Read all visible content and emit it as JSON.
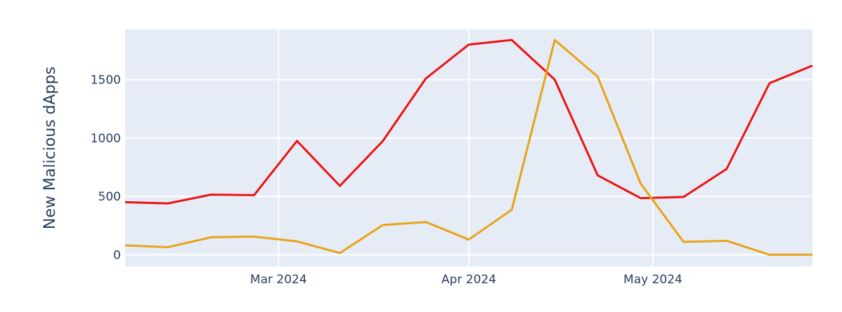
{
  "chart_data": {
    "type": "line",
    "title": "",
    "xlabel": "",
    "ylabel": "New Malicious dApps",
    "x": [
      "2024-02-05",
      "2024-02-12",
      "2024-02-19",
      "2024-02-26",
      "2024-03-04",
      "2024-03-11",
      "2024-03-18",
      "2024-03-25",
      "2024-04-01",
      "2024-04-08",
      "2024-04-15",
      "2024-04-22",
      "2024-04-29",
      "2024-05-06",
      "2024-05-13",
      "2024-05-20",
      "2024-05-27"
    ],
    "xlim": [
      "2024-02-05",
      "2024-05-27"
    ],
    "ylim": [
      -100,
      1930
    ],
    "x_ticks": [
      {
        "date": "2024-03-01",
        "label": "Mar 2024"
      },
      {
        "date": "2024-04-01",
        "label": "Apr 2024"
      },
      {
        "date": "2024-05-01",
        "label": "May 2024"
      }
    ],
    "y_ticks": [
      0,
      500,
      1000,
      1500
    ],
    "y_tick_labels": [
      "0",
      "500",
      "1000",
      "1500"
    ],
    "grid": true,
    "legend": "none",
    "series": [
      {
        "color": "#ee1111",
        "values": [
          450,
          440,
          515,
          510,
          975,
          590,
          975,
          1510,
          1800,
          1840,
          1500,
          680,
          485,
          495,
          735,
          1470,
          1620
        ]
      },
      {
        "color": "#e8a317",
        "values": [
          80,
          65,
          150,
          155,
          115,
          15,
          255,
          280,
          130,
          385,
          1840,
          1525,
          610,
          110,
          120,
          0,
          0
        ]
      }
    ]
  }
}
